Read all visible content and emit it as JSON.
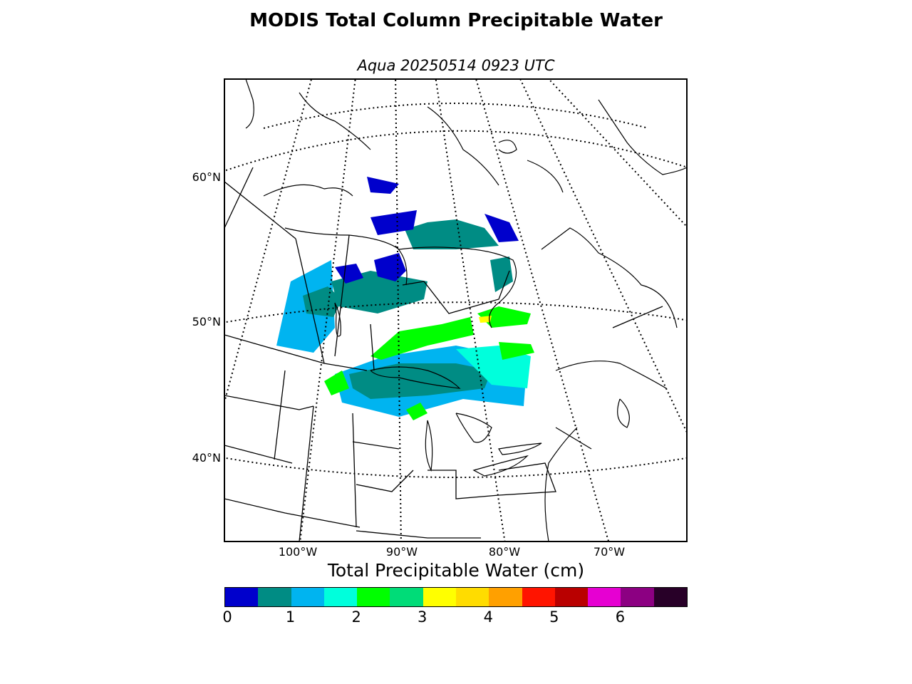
{
  "title": "MODIS Total Column Precipitable Water",
  "subtitle": "Aqua 20250514 0923 UTC",
  "lat_labels": [
    {
      "text": "60°N",
      "name": "lat-label-60n"
    },
    {
      "text": "50°N",
      "name": "lat-label-50n"
    },
    {
      "text": "40°N",
      "name": "lat-label-40n"
    }
  ],
  "lon_labels": [
    {
      "text": "100°W",
      "name": "lon-label-100w"
    },
    {
      "text": "90°W",
      "name": "lon-label-90w"
    },
    {
      "text": "80°W",
      "name": "lon-label-80w"
    },
    {
      "text": "70°W",
      "name": "lon-label-70w"
    }
  ],
  "colorbar": {
    "label": "Total Precipitable Water (cm)",
    "colors": [
      "#0000cc",
      "#008c84",
      "#00b4f0",
      "#00ffdc",
      "#00ff00",
      "#00dc78",
      "#ffff00",
      "#ffdc00",
      "#ffa000",
      "#ff1400",
      "#b90000",
      "#e600d2",
      "#8c0082",
      "#280028"
    ],
    "ticks": [
      "0",
      "1",
      "2",
      "3",
      "4",
      "5",
      "6"
    ],
    "min": 0,
    "max": 7
  }
}
